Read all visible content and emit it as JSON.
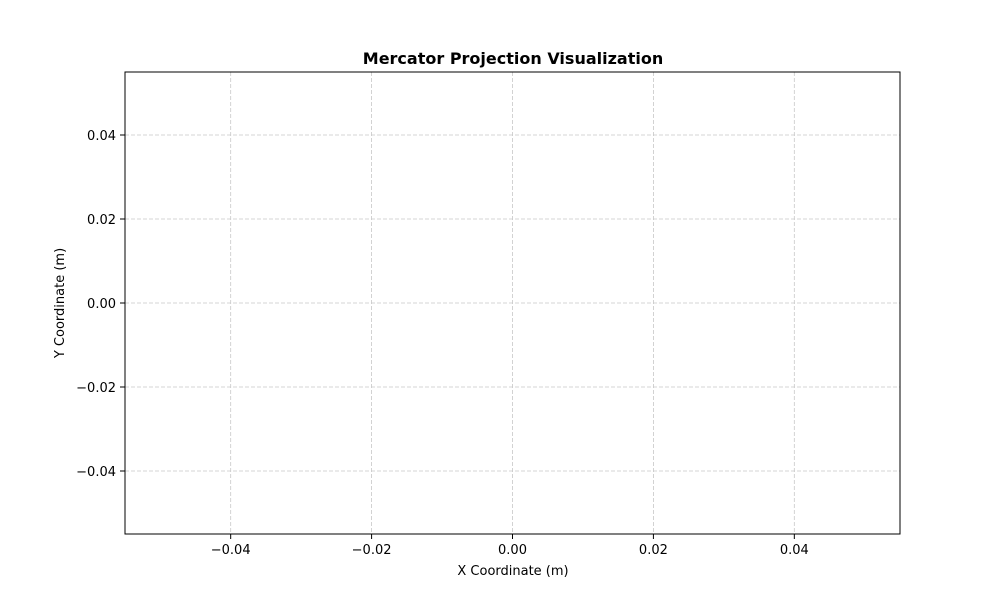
{
  "chart_data": {
    "type": "scatter",
    "title": "Mercator Projection Visualization",
    "xlabel": "X Coordinate (m)",
    "ylabel": "Y Coordinate (m)",
    "xlim": [
      -0.055,
      0.055
    ],
    "ylim": [
      -0.055,
      0.055
    ],
    "x_ticks": [
      -0.04,
      -0.02,
      0.0,
      0.02,
      0.04
    ],
    "y_ticks": [
      -0.04,
      -0.02,
      0.0,
      0.02,
      0.04
    ],
    "x_tick_labels": [
      "−0.04",
      "−0.02",
      "0.00",
      "0.02",
      "0.04"
    ],
    "y_tick_labels": [
      "−0.04",
      "−0.02",
      "0.00",
      "0.02",
      "0.04"
    ],
    "grid": true,
    "grid_style": "dashed",
    "grid_color": "#c8c8c8",
    "axes_color": "#000000",
    "series": [
      {
        "x": [],
        "y": []
      }
    ]
  }
}
